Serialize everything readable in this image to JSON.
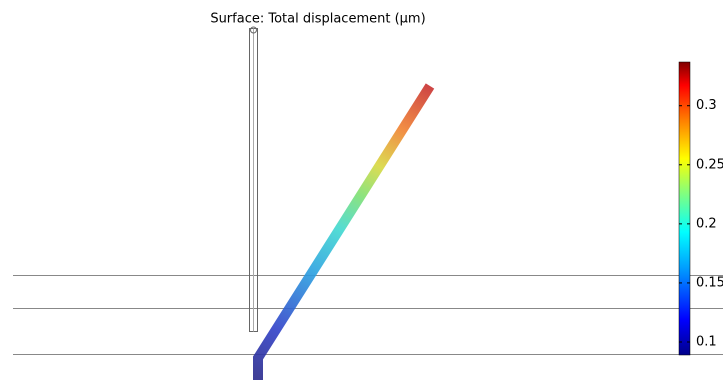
{
  "chart_data": {
    "type": "surface",
    "title": "Surface: Total displacement (µm)",
    "clim": [
      0.089,
      0.337
    ],
    "cticks": [
      0.1,
      0.15,
      0.2,
      0.25,
      0.3
    ]
  }
}
